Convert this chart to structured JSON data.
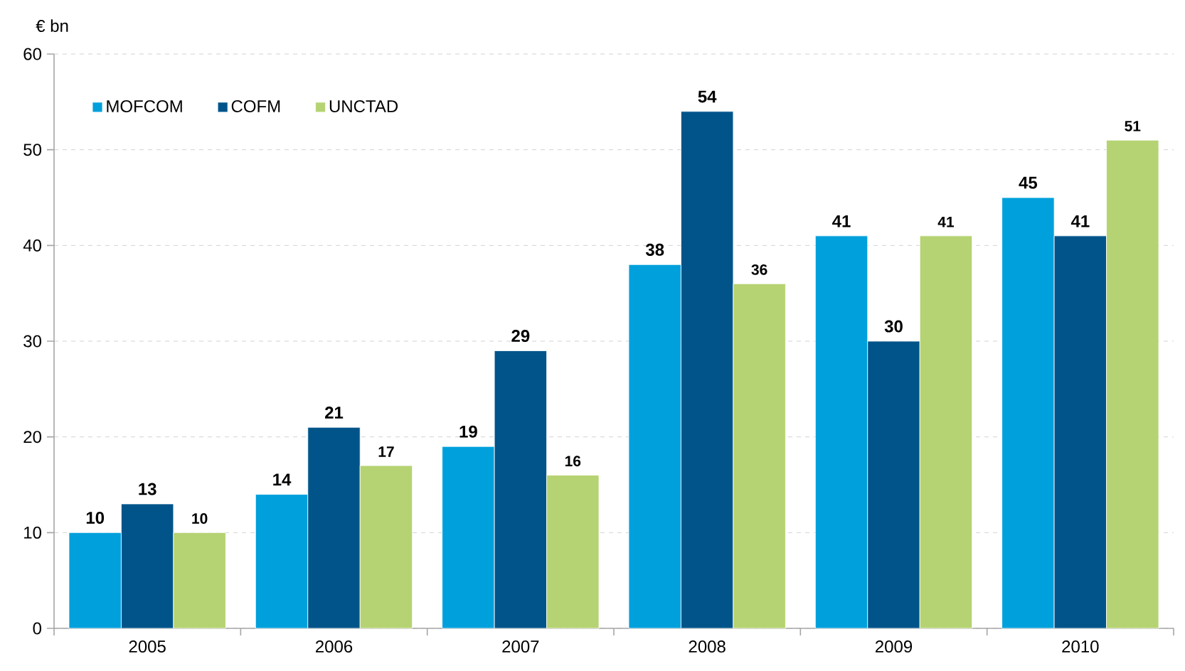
{
  "chart_data": {
    "type": "bar",
    "ylabel": "€ bn",
    "categories": [
      "2005",
      "2006",
      "2007",
      "2008",
      "2009",
      "2010"
    ],
    "series": [
      {
        "name": "MOFCOM",
        "color": "#00a0dc",
        "values": [
          10,
          14,
          19,
          38,
          41,
          45
        ]
      },
      {
        "name": "COFM",
        "color": "#00548a",
        "values": [
          13,
          21,
          29,
          54,
          30,
          41
        ]
      },
      {
        "name": "UNCTAD",
        "color": "#b5d372",
        "values": [
          10,
          17,
          16,
          36,
          41,
          51
        ]
      }
    ],
    "ylim": [
      0,
      60
    ],
    "yticks": [
      0,
      10,
      20,
      30,
      40,
      50,
      60
    ],
    "grid": "y",
    "legend": "top left",
    "data_labels": true
  }
}
